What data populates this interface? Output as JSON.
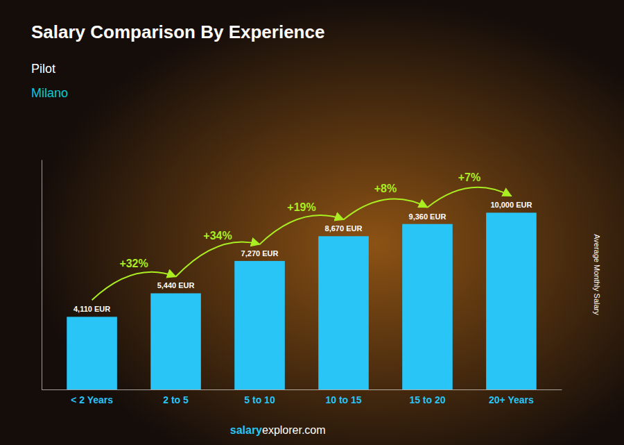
{
  "chart_data": {
    "type": "bar",
    "title": "Salary Comparison By Experience",
    "subtitle": "Pilot",
    "subtitle2": "Milano",
    "ylabel": "Average Monthly Salary",
    "footer": [
      "salary",
      "explorer.com"
    ],
    "categories": [
      "< 2 Years",
      "2 to 5",
      "5 to 10",
      "10 to 15",
      "15 to 20",
      "20+ Years"
    ],
    "values": [
      4110,
      5440,
      7270,
      8670,
      9360,
      10000
    ],
    "value_labels": [
      "4,110 EUR",
      "5,440 EUR",
      "7,270 EUR",
      "8,670 EUR",
      "9,360 EUR",
      "10,000 EUR"
    ],
    "annotations": [
      "+32%",
      "+34%",
      "+19%",
      "+8%",
      "+7%"
    ],
    "color": "#29C5F6",
    "ylim": [
      0,
      13000
    ],
    "yticks": [],
    "grid": false,
    "data_labels": true,
    "tick_labels": "x"
  }
}
